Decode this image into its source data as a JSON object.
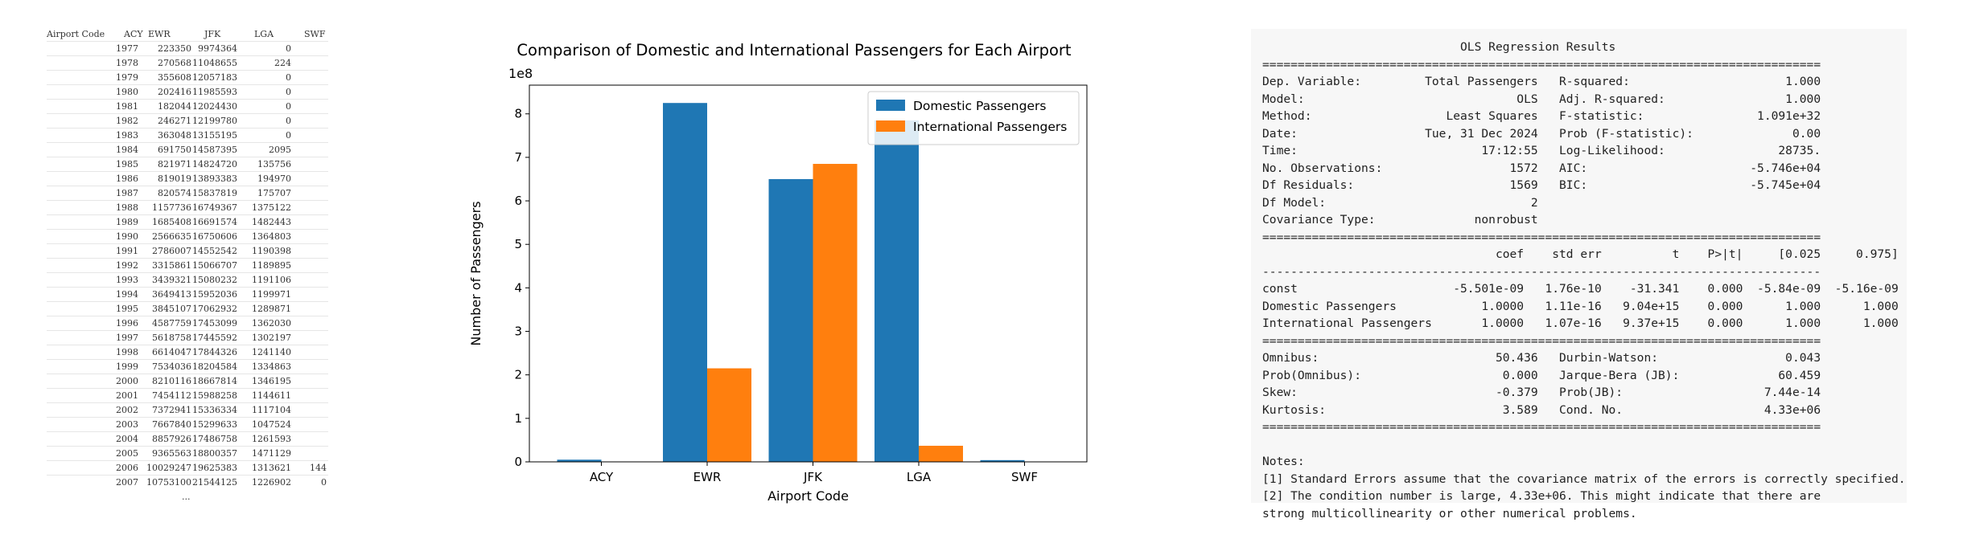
{
  "table": {
    "headers": [
      "Airport Code",
      "ACY",
      "EWR",
      "JFK",
      "LGA",
      "SWF"
    ],
    "rows": [
      [
        "1977",
        "",
        "223350",
        "9974364",
        "0",
        ""
      ],
      [
        "1978",
        "",
        "270568",
        "11048655",
        "224",
        ""
      ],
      [
        "1979",
        "",
        "355608",
        "12057183",
        "0",
        ""
      ],
      [
        "1980",
        "",
        "202416",
        "11985593",
        "0",
        ""
      ],
      [
        "1981",
        "",
        "182044",
        "12024430",
        "0",
        ""
      ],
      [
        "1982",
        "",
        "246271",
        "12199780",
        "0",
        ""
      ],
      [
        "1983",
        "",
        "363048",
        "13155195",
        "0",
        ""
      ],
      [
        "1984",
        "",
        "691750",
        "14587395",
        "2095",
        ""
      ],
      [
        "1985",
        "",
        "821971",
        "14824720",
        "135756",
        ""
      ],
      [
        "1986",
        "",
        "819019",
        "13893383",
        "194970",
        ""
      ],
      [
        "1987",
        "",
        "820574",
        "15837819",
        "175707",
        ""
      ],
      [
        "1988",
        "",
        "1157736",
        "16749367",
        "1375122",
        ""
      ],
      [
        "1989",
        "",
        "1685408",
        "16691574",
        "1482443",
        ""
      ],
      [
        "1990",
        "",
        "2566635",
        "16750606",
        "1364803",
        ""
      ],
      [
        "1991",
        "",
        "2786007",
        "14552542",
        "1190398",
        ""
      ],
      [
        "1992",
        "",
        "3315861",
        "15066707",
        "1189895",
        ""
      ],
      [
        "1993",
        "",
        "3439321",
        "15080232",
        "1191106",
        ""
      ],
      [
        "1994",
        "",
        "3649413",
        "15952036",
        "1199971",
        ""
      ],
      [
        "1995",
        "",
        "3845107",
        "17062932",
        "1289871",
        ""
      ],
      [
        "1996",
        "",
        "4587759",
        "17453099",
        "1362030",
        ""
      ],
      [
        "1997",
        "",
        "5618758",
        "17445592",
        "1302197",
        ""
      ],
      [
        "1998",
        "",
        "6614047",
        "17844326",
        "1241140",
        ""
      ],
      [
        "1999",
        "",
        "7534036",
        "18204584",
        "1334863",
        ""
      ],
      [
        "2000",
        "",
        "8210116",
        "18667814",
        "1346195",
        ""
      ],
      [
        "2001",
        "",
        "7454112",
        "15988258",
        "1144611",
        ""
      ],
      [
        "2002",
        "",
        "7372941",
        "15336334",
        "1117104",
        ""
      ],
      [
        "2003",
        "",
        "7667840",
        "15299633",
        "1047524",
        ""
      ],
      [
        "2004",
        "",
        "8857926",
        "17486758",
        "1261593",
        ""
      ],
      [
        "2005",
        "",
        "9365563",
        "18800357",
        "1471129",
        ""
      ],
      [
        "2006",
        "",
        "10029247",
        "19625383",
        "1313621",
        "144"
      ],
      [
        "2007",
        "",
        "10753100",
        "21544125",
        "1226902",
        "0"
      ]
    ],
    "ellipsis": "..."
  },
  "chart_data": {
    "type": "bar",
    "title": "Comparison of Domestic and International Passengers for Each Airport",
    "xlabel": "Airport Code",
    "ylabel": "Number of Passengers",
    "offset_text": "1e8",
    "categories": [
      "ACY",
      "EWR",
      "JFK",
      "LGA",
      "SWF"
    ],
    "series": [
      {
        "name": "Domestic Passengers",
        "color": "#1f77b4",
        "values": [
          0.05,
          8.25,
          6.5,
          7.85,
          0.04
        ]
      },
      {
        "name": "International Passengers",
        "color": "#ff7f0e",
        "values": [
          0.0,
          2.15,
          6.85,
          0.37,
          0.0
        ]
      }
    ],
    "ylim": [
      0,
      8.66
    ],
    "yticks": [
      "0",
      "1",
      "2",
      "3",
      "4",
      "5",
      "6",
      "7",
      "8"
    ],
    "legend": "top-right",
    "grid": false
  },
  "ols": {
    "title": "OLS Regression Results",
    "summary_left": [
      [
        "Dep. Variable:",
        "Total Passengers"
      ],
      [
        "Model:",
        "OLS"
      ],
      [
        "Method:",
        "Least Squares"
      ],
      [
        "Date:",
        "Tue, 31 Dec 2024"
      ],
      [
        "Time:",
        "17:12:55"
      ],
      [
        "No. Observations:",
        "1572"
      ],
      [
        "Df Residuals:",
        "1569"
      ],
      [
        "Df Model:",
        "2"
      ],
      [
        "Covariance Type:",
        "nonrobust"
      ]
    ],
    "summary_right": [
      [
        "R-squared:",
        "1.000"
      ],
      [
        "Adj. R-squared:",
        "1.000"
      ],
      [
        "F-statistic:",
        "1.091e+32"
      ],
      [
        "Prob (F-statistic):",
        "0.00"
      ],
      [
        "Log-Likelihood:",
        "28735."
      ],
      [
        "AIC:",
        "-5.746e+04"
      ],
      [
        "BIC:",
        "-5.745e+04"
      ]
    ],
    "coef_headers": [
      "",
      "coef",
      "std err",
      "t",
      "P>|t|",
      "[0.025",
      "0.975]"
    ],
    "coef_rows": [
      [
        "const",
        "-5.501e-09",
        "1.76e-10",
        "-31.341",
        "0.000",
        "-5.84e-09",
        "-5.16e-09"
      ],
      [
        "Domestic Passengers",
        "1.0000",
        "1.11e-16",
        "9.04e+15",
        "0.000",
        "1.000",
        "1.000"
      ],
      [
        "International Passengers",
        "1.0000",
        "1.07e-16",
        "9.37e+15",
        "0.000",
        "1.000",
        "1.000"
      ]
    ],
    "diag_rows": [
      [
        "Omnibus:",
        "50.436",
        "Durbin-Watson:",
        "0.043"
      ],
      [
        "Prob(Omnibus):",
        "0.000",
        "Jarque-Bera (JB):",
        "60.459"
      ],
      [
        "Skew:",
        "-0.379",
        "Prob(JB):",
        "7.44e-14"
      ],
      [
        "Kurtosis:",
        "3.589",
        "Cond. No.",
        "4.33e+06"
      ]
    ],
    "notes_title": "Notes:",
    "notes": [
      "[1] Standard Errors assume that the covariance matrix of the errors is correctly specified.",
      "[2] The condition number is large, 4.33e+06. This might indicate that there are",
      "strong multicollinearity or other numerical problems."
    ]
  }
}
